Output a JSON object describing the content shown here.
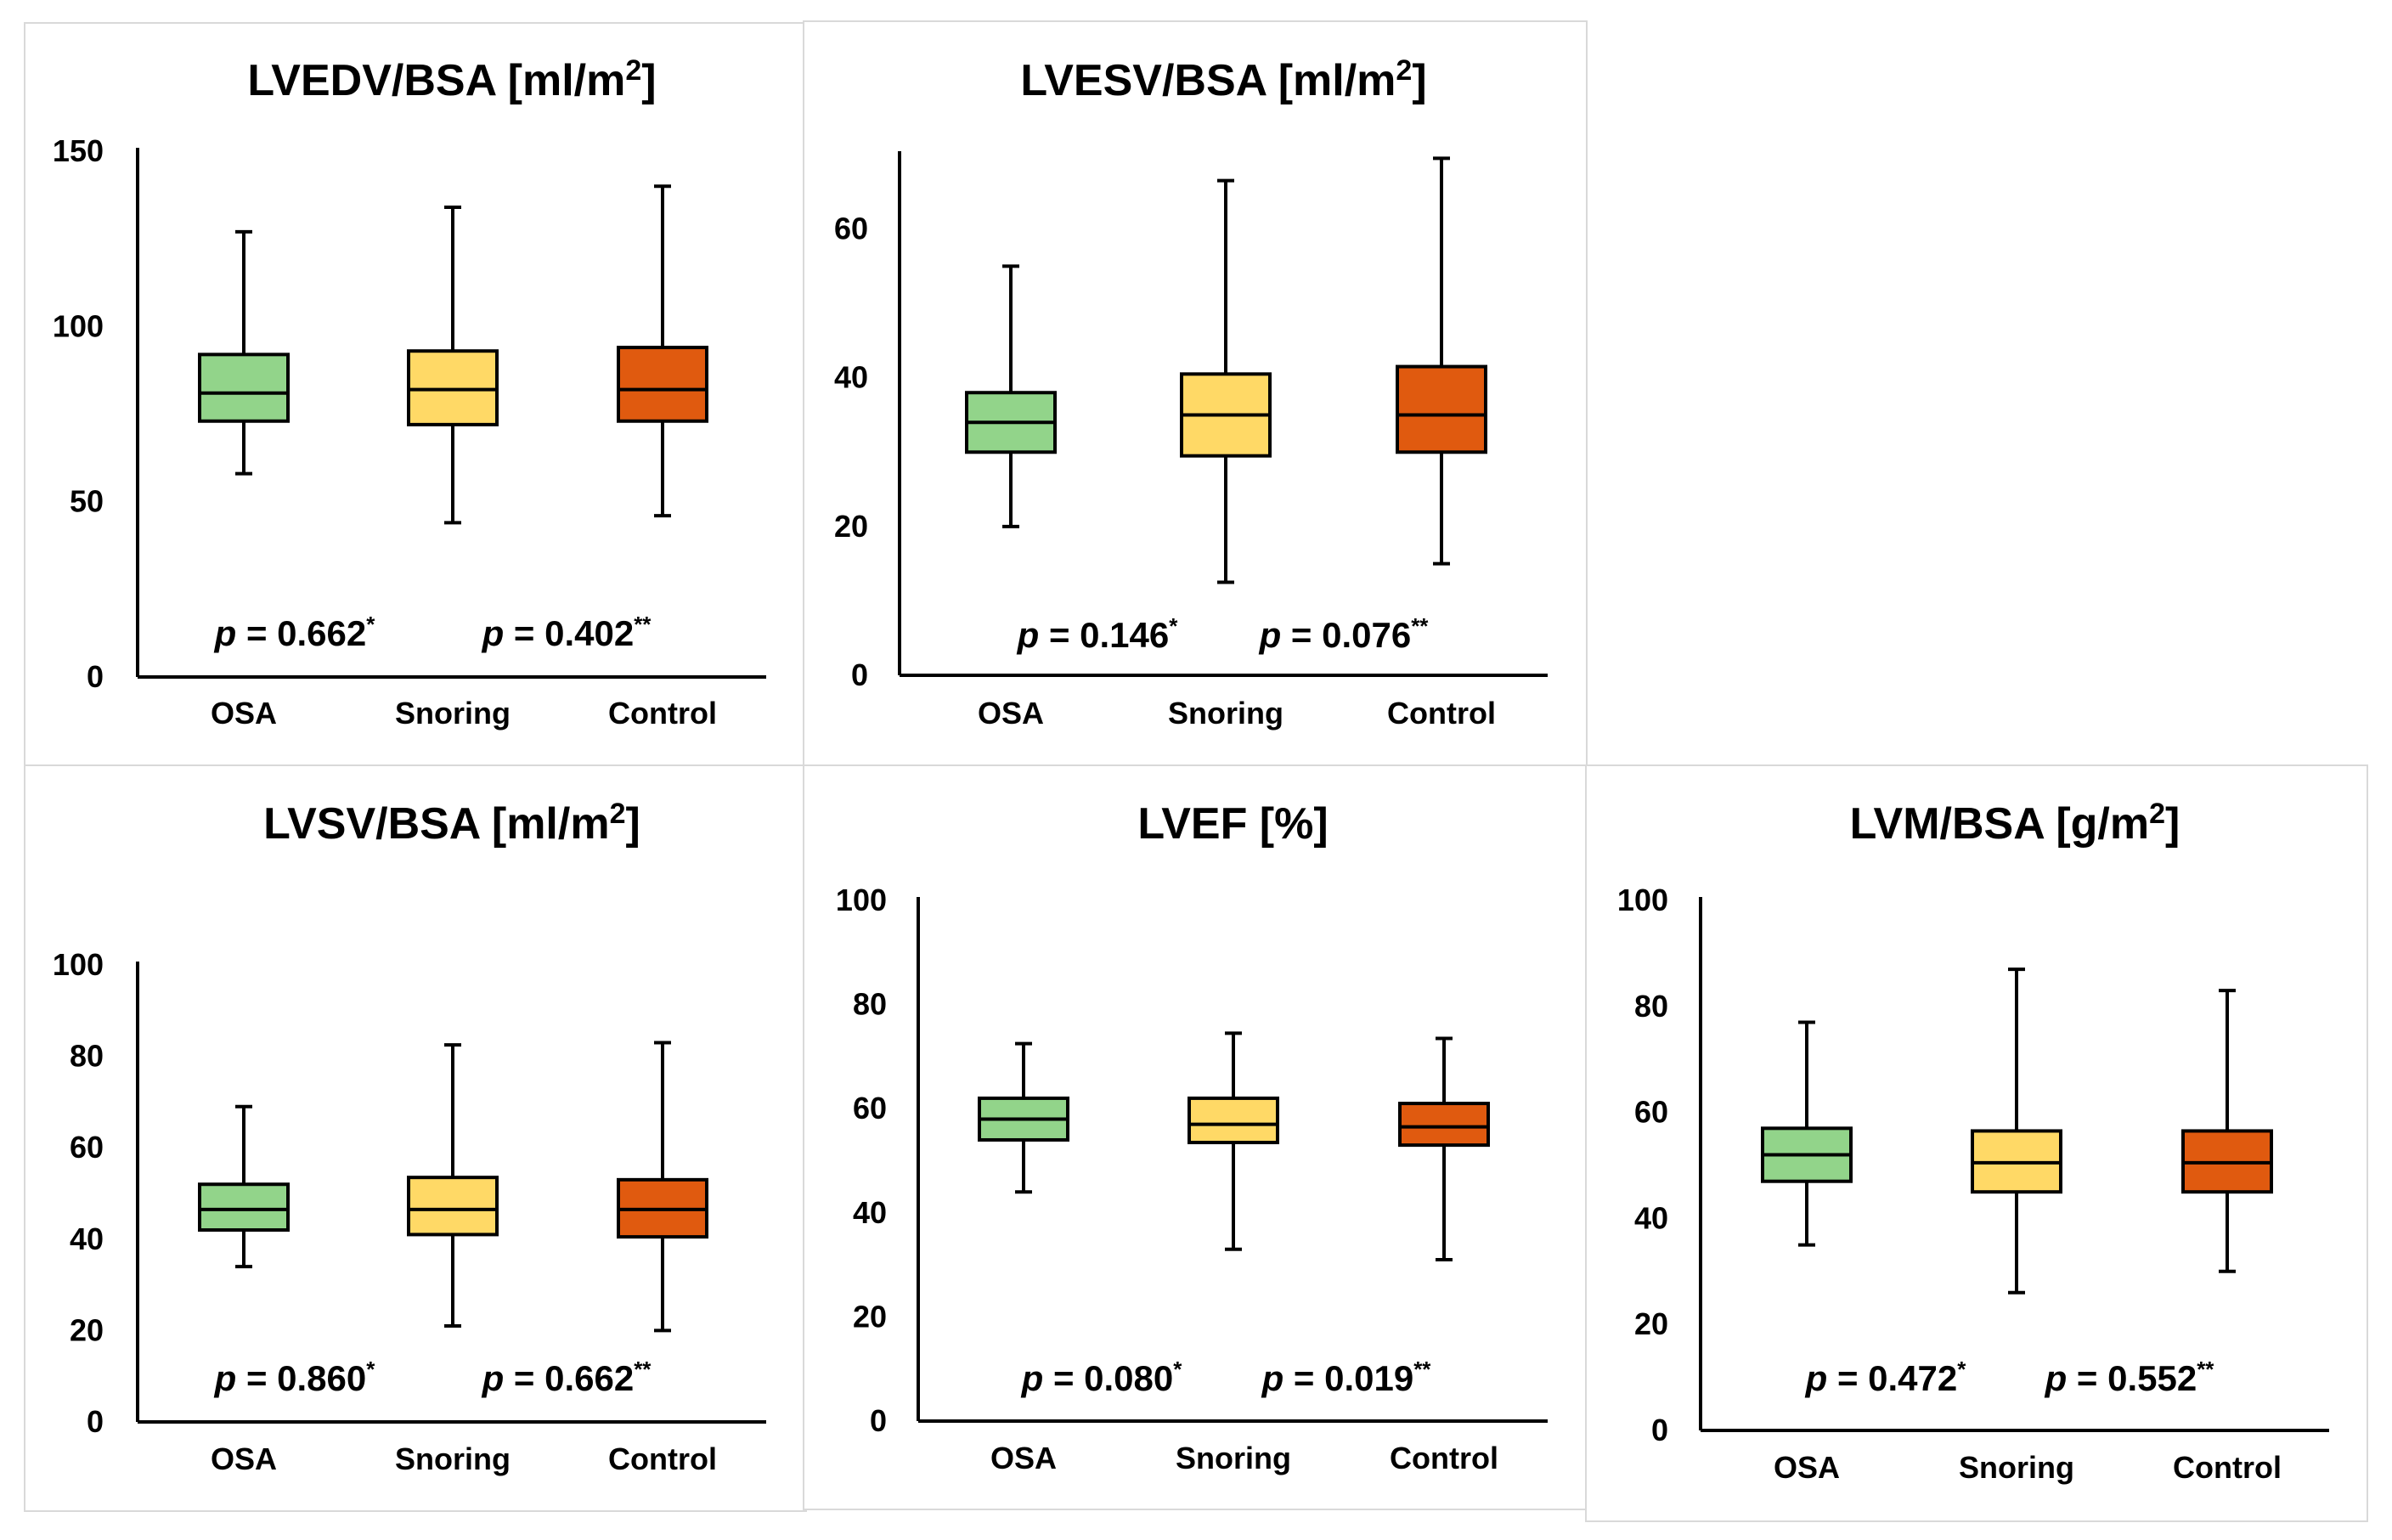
{
  "colors": {
    "OSA": "#92d48a",
    "Snoring": "#ffd966",
    "Control": "#e05a0f"
  },
  "chart_data": [
    {
      "id": "lvedv",
      "type": "boxplot",
      "title": "LVEDV/BSA [ml/m",
      "title_sup": "2",
      "title_end": "]",
      "categories": [
        "OSA",
        "Snoring",
        "Control"
      ],
      "ylim": [
        0,
        150
      ],
      "yticks": [
        "0",
        "50",
        "100",
        "150"
      ],
      "series": [
        {
          "name": "OSA",
          "min": 58,
          "q1": 73,
          "median": 81,
          "q3": 92,
          "max": 127
        },
        {
          "name": "Snoring",
          "min": 44,
          "q1": 72,
          "median": 82,
          "q3": 93,
          "max": 134
        },
        {
          "name": "Control",
          "min": 46,
          "q1": 73,
          "median": 82,
          "q3": 94,
          "max": 140
        }
      ],
      "pvalues": [
        {
          "p": "p",
          "text": " = 0.662",
          "mark": "*"
        },
        {
          "p": "p",
          "text": " = 0.402",
          "mark": "**"
        }
      ]
    },
    {
      "id": "lvesv",
      "type": "boxplot",
      "title": "LVESV/BSA [ml/m",
      "title_sup": "2",
      "title_end": "]",
      "categories": [
        "OSA",
        "Snoring",
        "Control"
      ],
      "ylim": [
        0,
        70
      ],
      "yticks": [
        "0",
        "20",
        "40",
        "60"
      ],
      "series": [
        {
          "name": "OSA",
          "min": 20,
          "q1": 30,
          "median": 34,
          "q3": 38,
          "max": 55
        },
        {
          "name": "Snoring",
          "min": 12.5,
          "q1": 29.5,
          "median": 35,
          "q3": 40.5,
          "max": 66.5
        },
        {
          "name": "Control",
          "min": 15,
          "q1": 30,
          "median": 35,
          "q3": 41.5,
          "max": 69.5
        }
      ],
      "pvalues": [
        {
          "p": "p",
          "text": " = 0.146",
          "mark": "*"
        },
        {
          "p": "p",
          "text": " = 0.076",
          "mark": "**"
        }
      ]
    },
    {
      "id": "lvsv",
      "type": "boxplot",
      "title": "LVSV/BSA [ml/m",
      "title_sup": "2",
      "title_end": "]",
      "categories": [
        "OSA",
        "Snoring",
        "Control"
      ],
      "ylim": [
        0,
        100
      ],
      "yticks": [
        "0",
        "20",
        "40",
        "60",
        "80",
        "100"
      ],
      "series": [
        {
          "name": "OSA",
          "min": 34,
          "q1": 42,
          "median": 46.5,
          "q3": 52,
          "max": 69
        },
        {
          "name": "Snoring",
          "min": 21,
          "q1": 41,
          "median": 46.5,
          "q3": 53.5,
          "max": 82.5
        },
        {
          "name": "Control",
          "min": 20,
          "q1": 40.5,
          "median": 46.5,
          "q3": 53,
          "max": 83
        }
      ],
      "pvalues": [
        {
          "p": "p",
          "text": " = 0.860",
          "mark": "*"
        },
        {
          "p": "p",
          "text": " = 0.662",
          "mark": "**"
        }
      ]
    },
    {
      "id": "lvef",
      "type": "boxplot",
      "title": "LVEF [%]",
      "title_sup": "",
      "title_end": "",
      "categories": [
        "OSA",
        "Snoring",
        "Control"
      ],
      "ylim": [
        0,
        100
      ],
      "yticks": [
        "0",
        "20",
        "40",
        "60",
        "80",
        "100"
      ],
      "series": [
        {
          "name": "OSA",
          "min": 44,
          "q1": 54,
          "median": 58,
          "q3": 62,
          "max": 72.5
        },
        {
          "name": "Snoring",
          "min": 33,
          "q1": 53.5,
          "median": 57,
          "q3": 62,
          "max": 74.5
        },
        {
          "name": "Control",
          "min": 31,
          "q1": 53,
          "median": 56.5,
          "q3": 61,
          "max": 73.5
        }
      ],
      "pvalues": [
        {
          "p": "p",
          "text": " = 0.080",
          "mark": "*"
        },
        {
          "p": "p",
          "text": " = 0.019",
          "mark": "**"
        }
      ]
    },
    {
      "id": "lvm",
      "type": "boxplot",
      "title": "LVM/BSA [g/m",
      "title_sup": "2",
      "title_end": "]",
      "categories": [
        "OSA",
        "Snoring",
        "Control"
      ],
      "ylim": [
        0,
        100
      ],
      "yticks": [
        "0",
        "20",
        "40",
        "60",
        "80",
        "100"
      ],
      "series": [
        {
          "name": "OSA",
          "min": 35,
          "q1": 47,
          "median": 52,
          "q3": 57,
          "max": 77
        },
        {
          "name": "Snoring",
          "min": 26,
          "q1": 45,
          "median": 50.5,
          "q3": 56.5,
          "max": 87
        },
        {
          "name": "Control",
          "min": 30,
          "q1": 45,
          "median": 50.5,
          "q3": 56.5,
          "max": 83
        }
      ],
      "pvalues": [
        {
          "p": "p",
          "text": " = 0.472",
          "mark": "*"
        },
        {
          "p": "p",
          "text": " = 0.552",
          "mark": "**"
        }
      ]
    }
  ]
}
